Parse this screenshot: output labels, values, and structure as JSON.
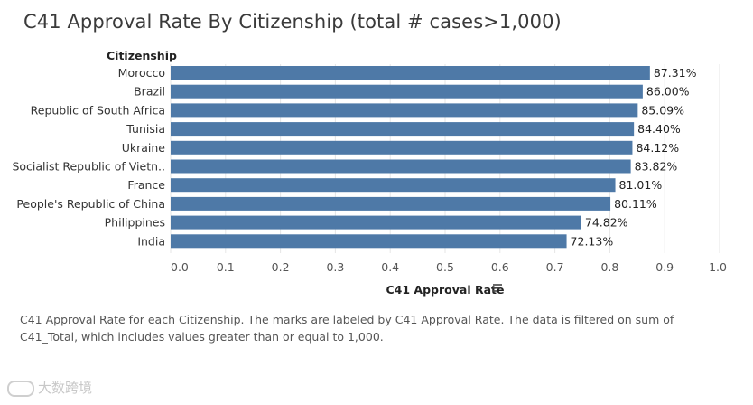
{
  "page": {
    "caption": "C41 Approval Rate for each Citizenship.  The marks are labeled by C41 Approval Rate. The data is filtered on sum of C41_Total, which includes values greater than or equal to 1,000.",
    "watermark": "大数跨境"
  },
  "colors": {
    "bar": "#4e79a7",
    "text": "#333333",
    "axis_text": "#555555",
    "gridline": "#e6e6e6"
  },
  "chart_data": {
    "type": "bar",
    "orientation": "horizontal",
    "title": "C41 Approval Rate By Citizenship (total # cases>1,000)",
    "row_header": "Citizenship",
    "xlabel": "C41 Approval Rate",
    "sort_icon": "sort-descending-icon",
    "categories": [
      "Morocco",
      "Brazil",
      "Republic of South Africa",
      "Tunisia",
      "Ukraine",
      "Socialist Republic of Vietn..",
      "France",
      "People's Republic of China",
      "Philippines",
      "India"
    ],
    "values": [
      0.8731,
      0.86,
      0.8509,
      0.844,
      0.8412,
      0.8382,
      0.8101,
      0.8011,
      0.7482,
      0.7213
    ],
    "data_labels": [
      "87.31%",
      "86.00%",
      "85.09%",
      "84.40%",
      "84.12%",
      "83.82%",
      "81.01%",
      "80.11%",
      "74.82%",
      "72.13%"
    ],
    "xlim": [
      0,
      1.0
    ],
    "xticks": [
      0.0,
      0.1,
      0.2,
      0.3,
      0.4,
      0.5,
      0.6,
      0.7,
      0.8,
      0.9,
      1.0
    ],
    "xtick_labels": [
      "0.0",
      "0.1",
      "0.2",
      "0.3",
      "0.4",
      "0.5",
      "0.6",
      "0.7",
      "0.8",
      "0.9",
      "1.0"
    ]
  }
}
